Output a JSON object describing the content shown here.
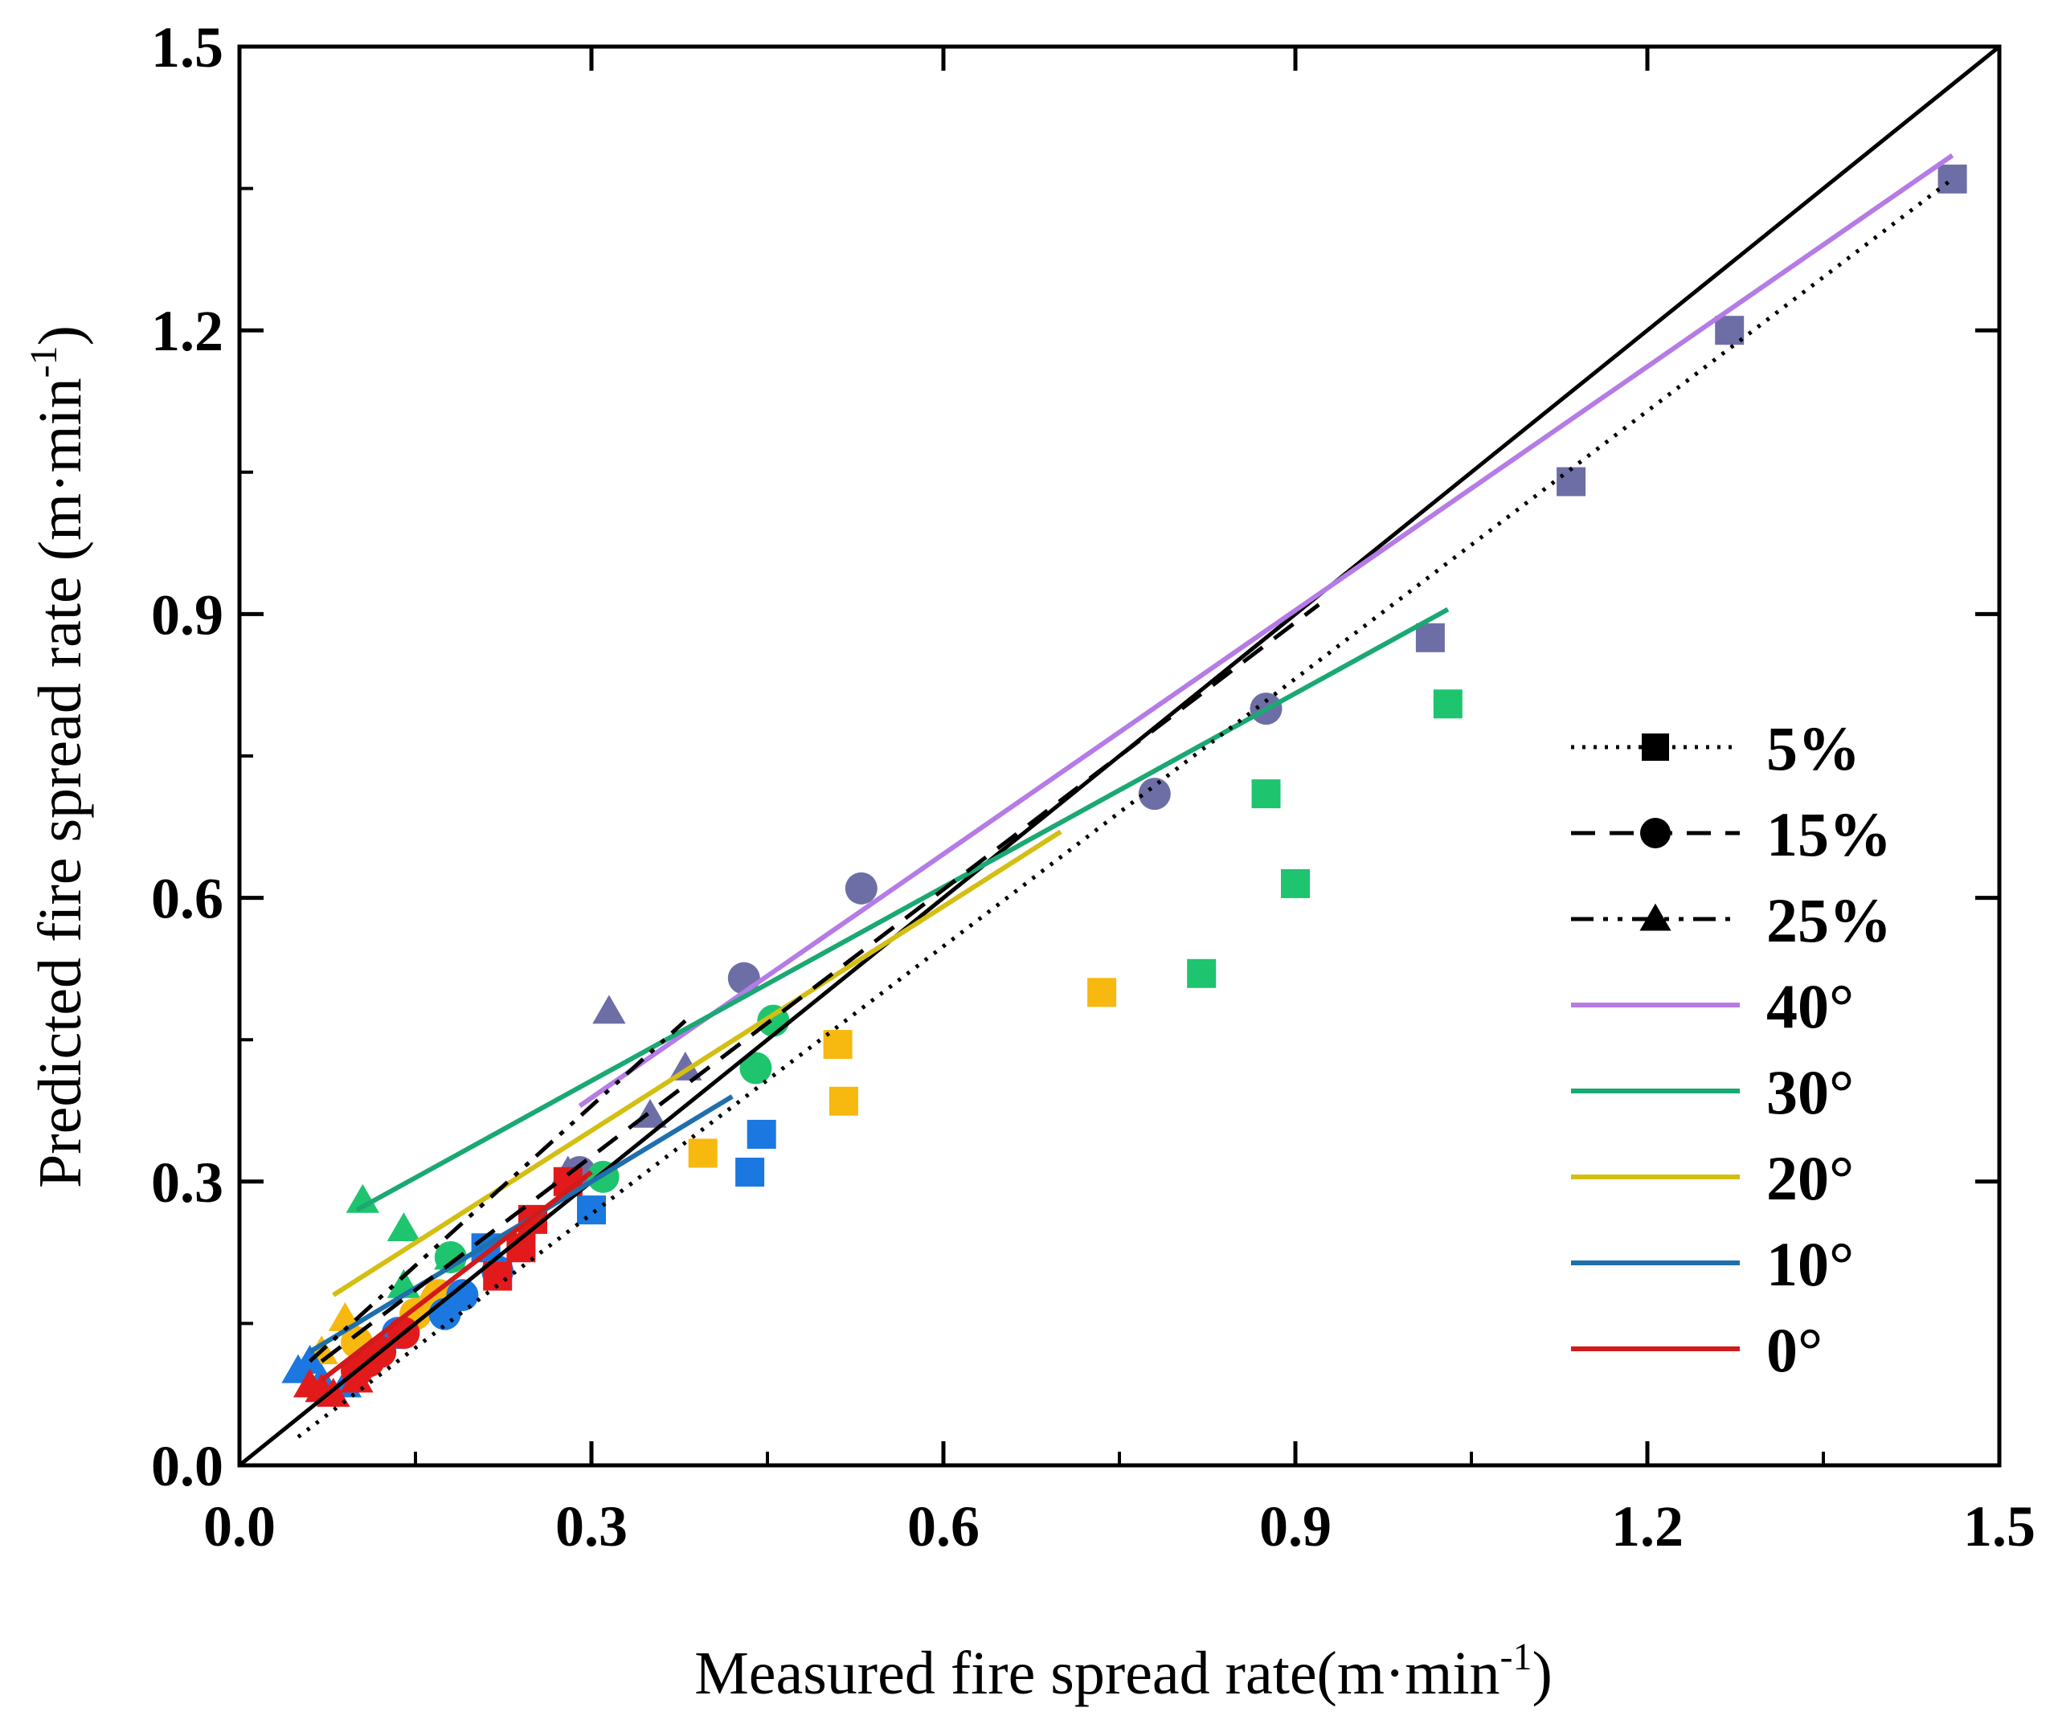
{
  "chart_data": {
    "type": "scatter",
    "xlabel": "Measured fire spread rate(m·min",
    "xlabel_sup": "-1",
    "xlabel_close": ")",
    "ylabel": "Predicted fire spread rate (m·min",
    "ylabel_sup": "-1",
    "ylabel_close": ")",
    "xlim": [
      0,
      1.5
    ],
    "ylim": [
      0,
      1.5
    ],
    "x_ticks": [
      0.0,
      0.3,
      0.6,
      0.9,
      1.2,
      1.5
    ],
    "y_ticks": [
      0.0,
      0.3,
      0.6,
      0.9,
      1.2,
      1.5
    ],
    "x_tick_labels": [
      "0.0",
      "0.3",
      "0.6",
      "0.9",
      "1.2",
      "1.5"
    ],
    "y_tick_labels": [
      "0.0",
      "0.3",
      "0.6",
      "0.9",
      "1.2",
      "1.5"
    ],
    "colors": {
      "40°": "#6e6ea6",
      "30°": "#1fc46e",
      "20°": "#f7b80f",
      "10°": "#1a78e0",
      "0°": "#e31a1c",
      "fit_40°": "#b57be6",
      "fit_30°": "#1aa873",
      "fit_20°": "#d4be12",
      "fit_10°": "#1f6fad",
      "fit_0°": "#d11a1a",
      "ref": "#000000"
    },
    "legend": [
      {
        "label": "5%",
        "style": "dotted",
        "marker": "square",
        "color": "#000000"
      },
      {
        "label": "15%",
        "style": "dashed",
        "marker": "circle",
        "color": "#000000"
      },
      {
        "label": "25%",
        "style": "dashdotdot",
        "marker": "triangle",
        "color": "#000000"
      },
      {
        "label": "40°",
        "style": "solid",
        "marker": "none",
        "color": "#b57be6"
      },
      {
        "label": "30°",
        "style": "solid",
        "marker": "none",
        "color": "#1aa873"
      },
      {
        "label": "20°",
        "style": "solid",
        "marker": "none",
        "color": "#d4be12"
      },
      {
        "label": "10°",
        "style": "solid",
        "marker": "none",
        "color": "#1f6fad"
      },
      {
        "label": "0°",
        "style": "solid",
        "marker": "none",
        "color": "#d11a1a"
      }
    ],
    "reference_line": {
      "x": [
        0,
        1.5
      ],
      "y": [
        0,
        1.5
      ]
    },
    "lines": [
      {
        "series": "40°",
        "x": [
          0.29,
          1.46
        ],
        "y": [
          0.38,
          1.385
        ],
        "style": "solid"
      },
      {
        "series": "30°",
        "x": [
          0.1,
          1.03
        ],
        "y": [
          0.27,
          0.905
        ],
        "style": "solid"
      },
      {
        "series": "20°",
        "x": [
          0.08,
          0.7
        ],
        "y": [
          0.18,
          0.67
        ],
        "style": "solid"
      },
      {
        "series": "10°",
        "x": [
          0.06,
          0.42
        ],
        "y": [
          0.12,
          0.39
        ],
        "style": "solid"
      },
      {
        "series": "0°",
        "x": [
          0.07,
          0.3
        ],
        "y": [
          0.09,
          0.31
        ],
        "style": "solid"
      },
      {
        "series": "5%",
        "x": [
          0.05,
          1.46
        ],
        "y": [
          0.03,
          1.36
        ],
        "style": "dotted"
      },
      {
        "series": "15%",
        "x": [
          0.07,
          0.92
        ],
        "y": [
          0.11,
          0.91
        ],
        "style": "dashed"
      },
      {
        "series": "25%",
        "x": [
          0.06,
          0.38
        ],
        "y": [
          0.11,
          0.47
        ],
        "style": "dashdotdot"
      }
    ],
    "series": [
      {
        "name": "40°",
        "marker": "square",
        "x": [
          1.46,
          1.27,
          1.135,
          1.015
        ],
        "y": [
          1.36,
          1.2,
          1.04,
          0.875
        ]
      },
      {
        "name": "40°",
        "marker": "circle",
        "x": [
          0.875,
          0.78,
          0.53,
          0.43,
          0.29
        ],
        "y": [
          0.8,
          0.71,
          0.61,
          0.515,
          0.31
        ]
      },
      {
        "name": "40°",
        "marker": "triangle",
        "x": [
          0.315,
          0.38,
          0.35,
          0.28
        ],
        "y": [
          0.48,
          0.42,
          0.37,
          0.31
        ]
      },
      {
        "name": "30°",
        "marker": "square",
        "x": [
          1.03,
          0.875,
          0.9,
          0.82
        ],
        "y": [
          0.805,
          0.71,
          0.615,
          0.52
        ]
      },
      {
        "name": "30°",
        "marker": "circle",
        "x": [
          0.455,
          0.44,
          0.31,
          0.18
        ],
        "y": [
          0.47,
          0.42,
          0.305,
          0.22
        ]
      },
      {
        "name": "30°",
        "marker": "triangle",
        "x": [
          0.105,
          0.14,
          0.14,
          0.18
        ],
        "y": [
          0.28,
          0.25,
          0.19,
          0.22
        ]
      },
      {
        "name": "20°",
        "marker": "square",
        "x": [
          0.735,
          0.51,
          0.515,
          0.395
        ],
        "y": [
          0.5,
          0.445,
          0.385,
          0.33
        ]
      },
      {
        "name": "20°",
        "marker": "circle",
        "x": [
          0.17,
          0.15,
          0.1
        ],
        "y": [
          0.18,
          0.16,
          0.13
        ]
      },
      {
        "name": "20°",
        "marker": "triangle",
        "x": [
          0.09,
          0.16,
          0.07
        ],
        "y": [
          0.155,
          0.175,
          0.12
        ]
      },
      {
        "name": "10°",
        "marker": "square",
        "x": [
          0.445,
          0.435,
          0.3,
          0.21
        ],
        "y": [
          0.35,
          0.31,
          0.27,
          0.23
        ]
      },
      {
        "name": "10°",
        "marker": "circle",
        "x": [
          0.22,
          0.19,
          0.175,
          0.135
        ],
        "y": [
          0.205,
          0.18,
          0.16,
          0.14
        ]
      },
      {
        "name": "10°",
        "marker": "triangle",
        "x": [
          0.06,
          0.07,
          0.09,
          0.05
        ],
        "y": [
          0.11,
          0.09,
          0.085,
          0.1
        ]
      },
      {
        "name": "0°",
        "marker": "square",
        "x": [
          0.25,
          0.22,
          0.24,
          0.28
        ],
        "y": [
          0.26,
          0.2,
          0.23,
          0.3
        ]
      },
      {
        "name": "0°",
        "marker": "circle",
        "x": [
          0.14,
          0.12,
          0.11,
          0.1
        ],
        "y": [
          0.14,
          0.12,
          0.11,
          0.1
        ]
      },
      {
        "name": "0°",
        "marker": "triangle",
        "x": [
          0.07,
          0.08,
          0.1,
          0.06
        ],
        "y": [
          0.08,
          0.075,
          0.09,
          0.085
        ]
      }
    ]
  }
}
